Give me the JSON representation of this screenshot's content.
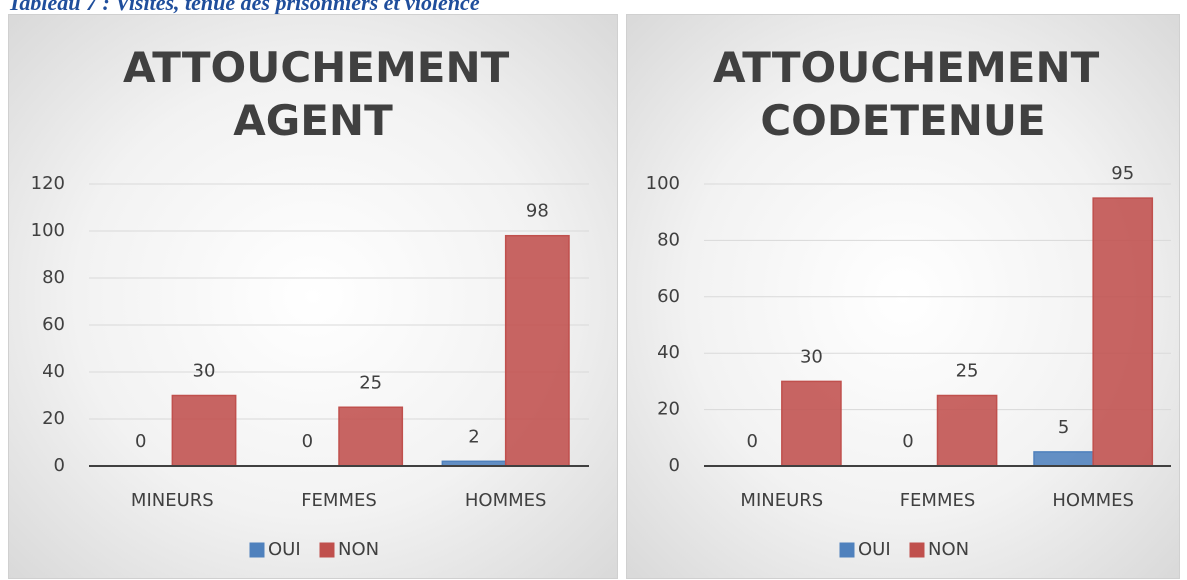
{
  "heading": "Tableau 7 : Visites, tenue des prisonniers et violence",
  "chart_data": [
    {
      "type": "bar",
      "title": "ATTOUCHEMENT AGENT",
      "categories": [
        "MINEURS",
        "FEMMES",
        "HOMMES"
      ],
      "series": [
        {
          "name": "OUI",
          "color": "#4f81bd",
          "values": [
            0,
            0,
            2
          ]
        },
        {
          "name": "NON",
          "color": "#c0504d",
          "values": [
            30,
            25,
            98
          ]
        }
      ],
      "ylim": [
        0,
        120
      ],
      "yticks": [
        0,
        20,
        40,
        60,
        80,
        100,
        120
      ],
      "grid": true,
      "legend": "bottom"
    },
    {
      "type": "bar",
      "title": "ATTOUCHEMENT CODETENUE",
      "categories": [
        "MINEURS",
        "FEMMES",
        "HOMMES"
      ],
      "series": [
        {
          "name": "OUI",
          "color": "#4f81bd",
          "values": [
            0,
            0,
            5
          ]
        },
        {
          "name": "NON",
          "color": "#c0504d",
          "values": [
            30,
            25,
            95
          ]
        }
      ],
      "ylim": [
        0,
        100
      ],
      "yticks": [
        0,
        20,
        40,
        60,
        80,
        100
      ],
      "grid": true,
      "legend": "bottom"
    }
  ]
}
